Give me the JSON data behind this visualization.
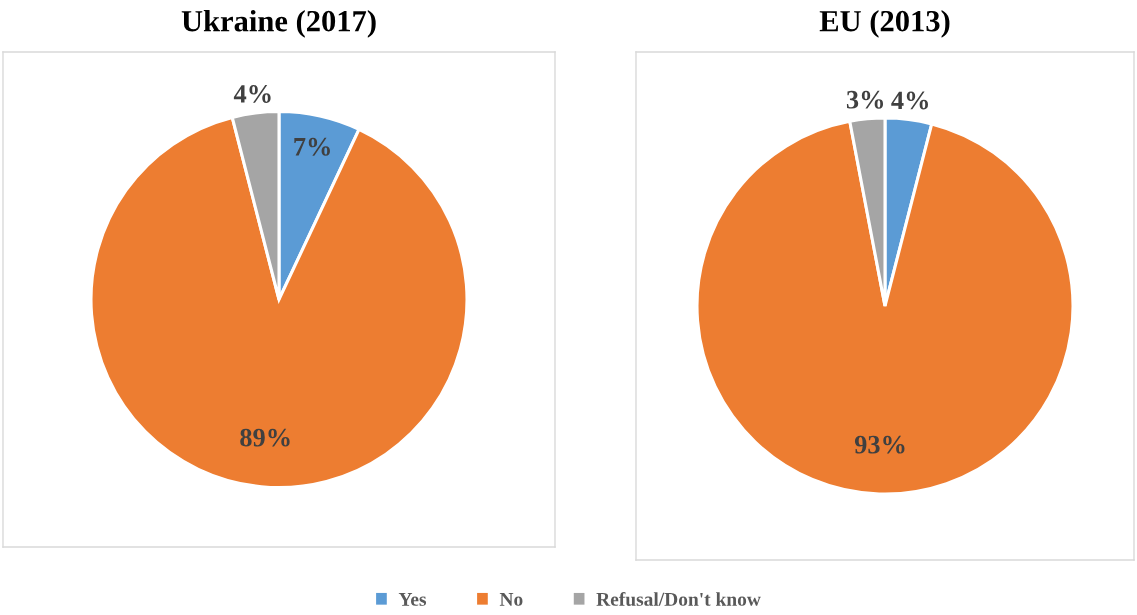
{
  "chart_data": {
    "type": "pie",
    "categories": [
      "Yes",
      "No",
      "Refusal/Don't know"
    ],
    "colors": [
      "#5b9bd5",
      "#ed7d31",
      "#a5a5a5"
    ],
    "legend": "bottom",
    "series": [
      {
        "name": "Ukraine (2017)",
        "values": [
          7,
          89,
          4
        ],
        "value_labels": [
          "7%",
          "89%",
          "4%"
        ]
      },
      {
        "name": "EU (2013)",
        "values": [
          4,
          93,
          3
        ],
        "value_labels": [
          "4%",
          "93%",
          "3%"
        ]
      }
    ]
  }
}
